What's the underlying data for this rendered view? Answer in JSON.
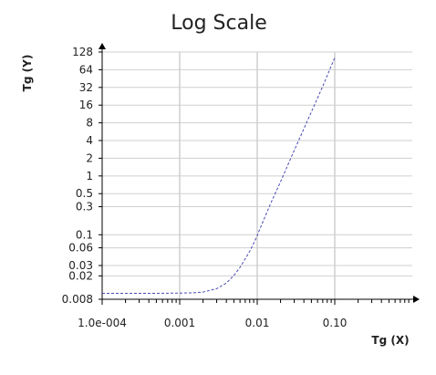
{
  "chart_data": {
    "type": "line",
    "title": "Log Scale",
    "xlabel": "Tg (X)",
    "ylabel": "Tg (Y)",
    "x_scale": "log",
    "y_scale": "log",
    "xlim": [
      0.0001,
      0.1
    ],
    "ylim": [
      0.008,
      128
    ],
    "x_ticks": [
      {
        "value": 0.0001,
        "label": "1.0e-004"
      },
      {
        "value": 0.001,
        "label": "0.001"
      },
      {
        "value": 0.01,
        "label": "0.01"
      },
      {
        "value": 0.1,
        "label": "0.10"
      }
    ],
    "y_ticks": [
      {
        "value": 128,
        "label": "128"
      },
      {
        "value": 64,
        "label": "64"
      },
      {
        "value": 32,
        "label": "32"
      },
      {
        "value": 16,
        "label": "16"
      },
      {
        "value": 8,
        "label": "8"
      },
      {
        "value": 4,
        "label": "4"
      },
      {
        "value": 2,
        "label": "2"
      },
      {
        "value": 1,
        "label": "1"
      },
      {
        "value": 0.5,
        "label": "0.5"
      },
      {
        "value": 0.3,
        "label": "0.3"
      },
      {
        "value": 0.1,
        "label": "0.1"
      },
      {
        "value": 0.06,
        "label": "0.06"
      },
      {
        "value": 0.03,
        "label": "0.03"
      },
      {
        "value": 0.02,
        "label": "0.02"
      },
      {
        "value": 0.008,
        "label": "0.008"
      }
    ],
    "x_grid_values": [
      0.001,
      0.01,
      0.1
    ],
    "grid": true,
    "series": [
      {
        "color": "#4b4bb5",
        "style": "dashed",
        "x": [
          0.0001,
          0.0005,
          0.001,
          0.0015,
          0.002,
          0.003,
          0.004,
          0.005,
          0.006,
          0.007,
          0.008,
          0.009,
          0.01,
          0.012,
          0.015,
          0.02,
          0.03,
          0.05,
          0.07,
          0.1
        ],
        "y": [
          0.0101,
          0.0101,
          0.0102,
          0.0103,
          0.0106,
          0.0121,
          0.0151,
          0.0203,
          0.0279,
          0.0389,
          0.0522,
          0.0713,
          0.0974,
          0.1739,
          0.3475,
          0.798,
          2.714,
          12.29,
          33.43,
          102.4
        ]
      }
    ]
  }
}
